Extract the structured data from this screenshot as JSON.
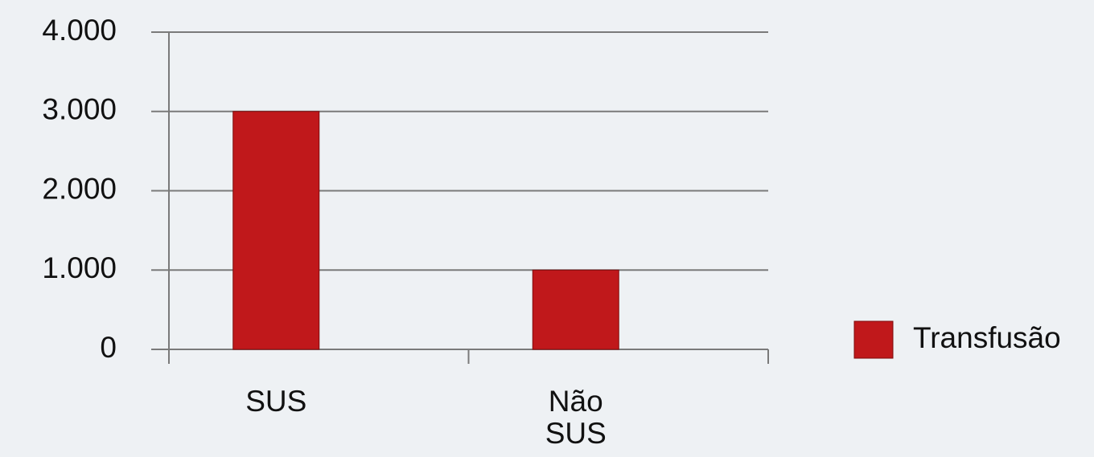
{
  "chart_data": {
    "type": "bar",
    "categories": [
      "SUS",
      "Não SUS"
    ],
    "series": [
      {
        "name": "Transfusão",
        "color": "#c0181b",
        "values": [
          3000,
          1000
        ]
      }
    ],
    "ylim": [
      0,
      4000
    ],
    "yticks": [
      0,
      {
        "value": 1000,
        "label": "1.000"
      },
      {
        "value": 2000,
        "label": "2.000"
      },
      {
        "value": 3000,
        "label": "3.000"
      },
      {
        "value": 4000,
        "label": "4.000"
      }
    ],
    "grid": true,
    "legend": "right"
  }
}
